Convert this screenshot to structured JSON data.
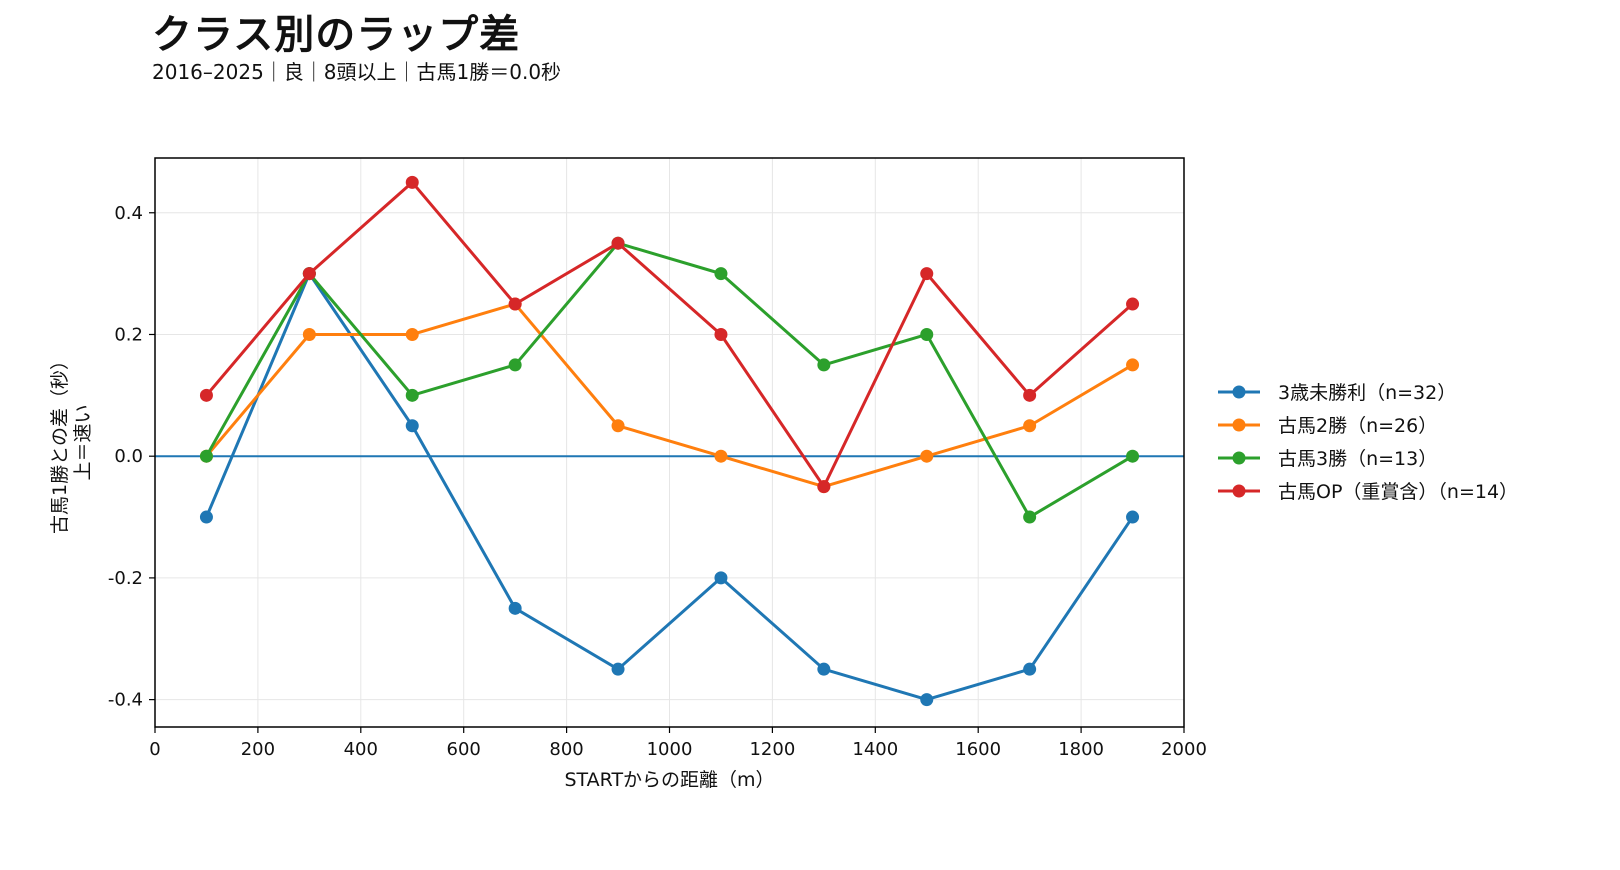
{
  "chart_data": {
    "type": "line",
    "title": "クラス別のラップ差",
    "subtitle": "2016–2025｜良｜8頭以上｜古馬1勝＝0.0秒",
    "xlabel": "STARTからの距離（m）",
    "ylabel_line1": "古馬1勝との差（秒）",
    "ylabel_line2": "上＝速い",
    "xlim": [
      0,
      2000
    ],
    "ylim": [
      -0.445,
      0.49
    ],
    "xticks": [
      0,
      200,
      400,
      600,
      800,
      1000,
      1200,
      1400,
      1600,
      1800,
      2000
    ],
    "yticks": [
      -0.4,
      -0.2,
      0.0,
      0.2,
      0.4
    ],
    "xtick_labels": [
      "0",
      "200",
      "400",
      "600",
      "800",
      "1000",
      "1200",
      "1400",
      "1600",
      "1800",
      "2000"
    ],
    "ytick_labels": [
      "-0.4",
      "-0.2",
      "0.0",
      "0.2",
      "0.4"
    ],
    "grid": true,
    "reference_line": {
      "y": 0.0,
      "color": "#1f77b4"
    },
    "legend_position": "right",
    "x": [
      100,
      300,
      500,
      700,
      900,
      1100,
      1300,
      1500,
      1700,
      1900
    ],
    "series": [
      {
        "name": "3歳未勝利（n=32）",
        "color": "#1f77b4",
        "values": [
          -0.1,
          0.3,
          0.05,
          -0.25,
          -0.35,
          -0.2,
          -0.35,
          -0.4,
          -0.35,
          -0.1
        ]
      },
      {
        "name": "古馬2勝（n=26）",
        "color": "#ff7f0e",
        "values": [
          0.0,
          0.2,
          0.2,
          0.25,
          0.05,
          0.0,
          -0.05,
          0.0,
          0.05,
          0.15
        ]
      },
      {
        "name": "古馬3勝（n=13）",
        "color": "#2ca02c",
        "values": [
          0.0,
          0.3,
          0.1,
          0.15,
          0.35,
          0.3,
          0.15,
          0.2,
          -0.1,
          0.0
        ]
      },
      {
        "name": "古馬OP（重賞含）（n=14）",
        "color": "#d62728",
        "values": [
          0.1,
          0.3,
          0.45,
          0.25,
          0.35,
          0.2,
          -0.05,
          0.3,
          0.1,
          0.25
        ]
      }
    ]
  }
}
